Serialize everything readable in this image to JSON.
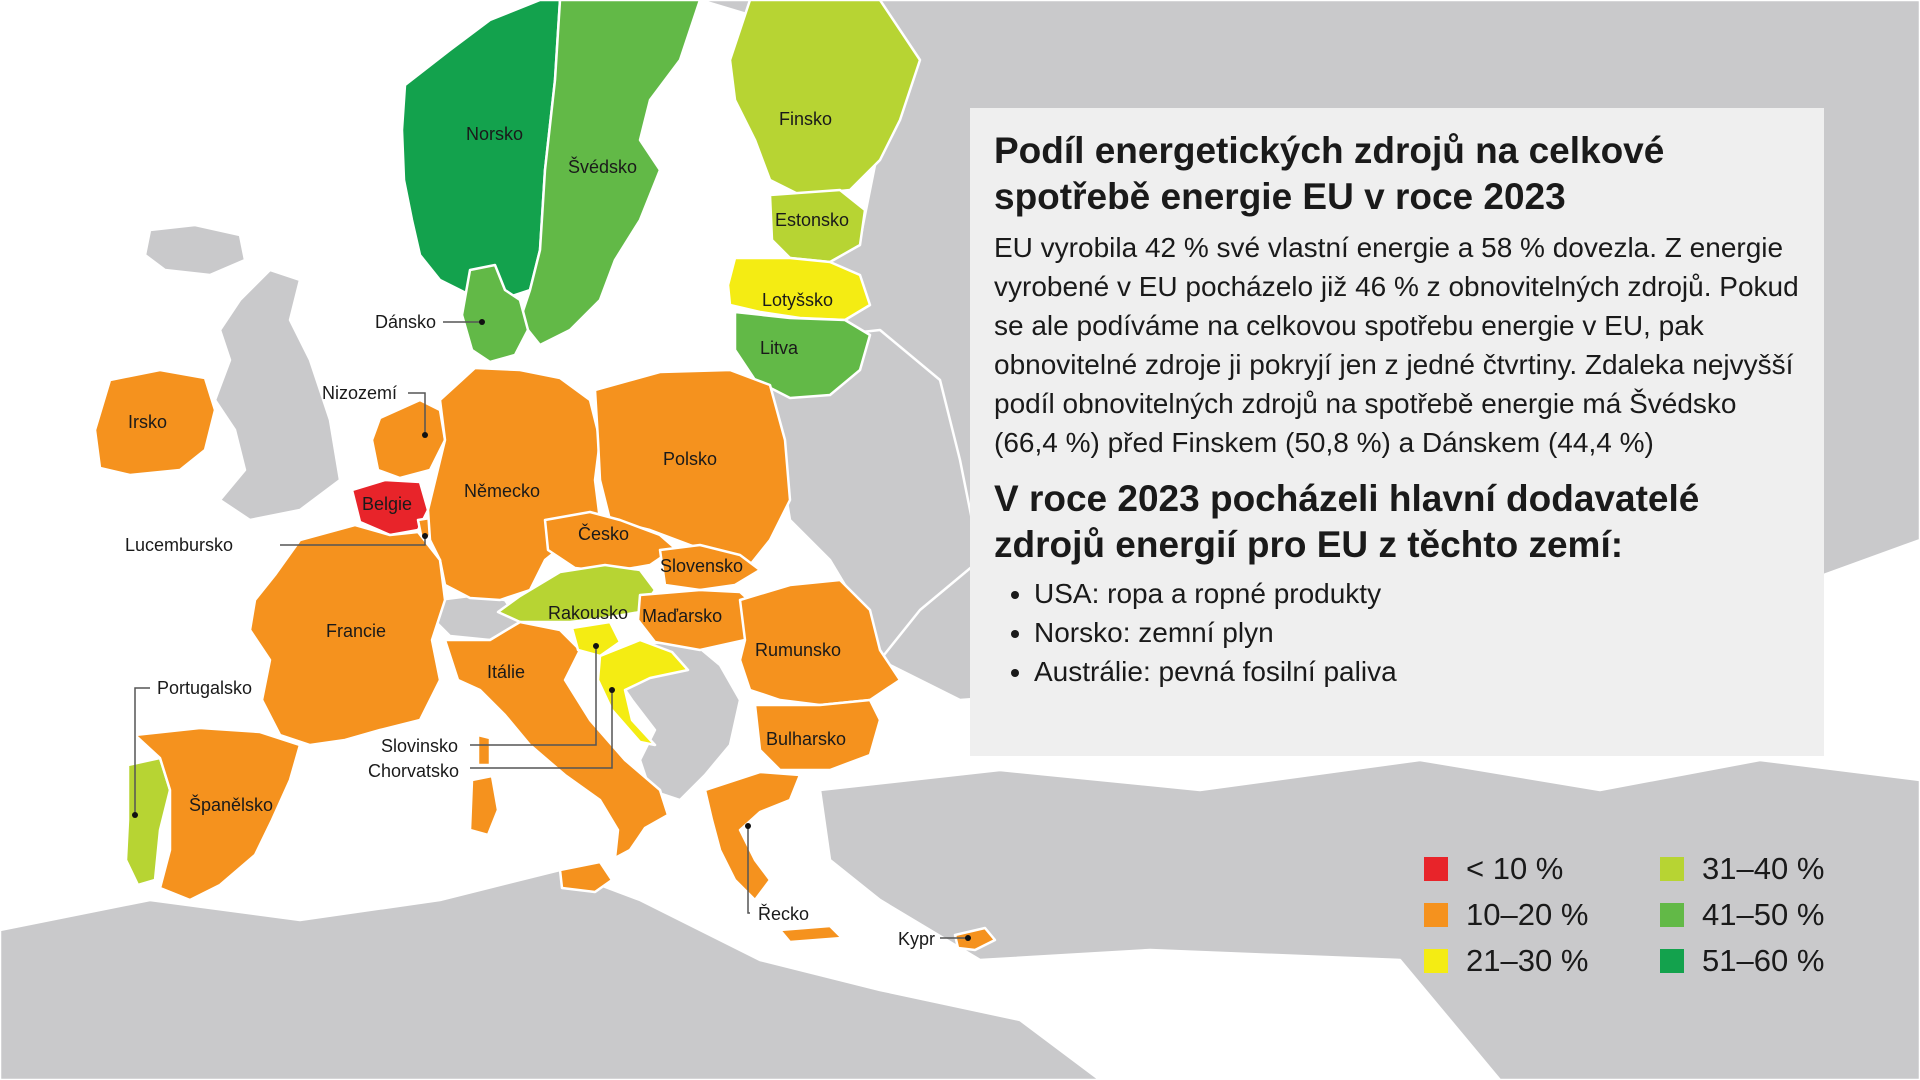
{
  "colors": {
    "lt10": "#e8242a",
    "p10_20": "#f5921e",
    "p21_30": "#f4ec13",
    "p31_40": "#b7d433",
    "p41_50": "#62b947",
    "p51_60": "#13a24d",
    "nonEU": "#c9c9cb",
    "sea": "#ffffff",
    "panel": "#efefef"
  },
  "panel": {
    "title": "Podíl energetických zdrojů na celkové spotřebě energie EU v roce 2023",
    "body": "EU vyrobila 42 % své vlastní energie a 58 % dovezla. Z energie vyrobené v EU pocházelo již 46 % z obnovitelných zdrojů. Pokud se ale podíváme na celkovou spotřebu energie v EU, pak obnovitelné zdroje ji pokryjí jen z jedné čtvrtiny. Zdaleka nejvyšší podíl obnovitelných zdrojů na spotřebě energie má Švédsko (66,4 %) před Finskem (50,8 %) a Dánskem (44,4 %)",
    "subtitle": "V roce 2023 pocházeli hlavní dodavatelé zdrojů energií pro EU z těchto zemí:",
    "suppliers": [
      "USA: ropa a ropné produkty",
      "Norsko: zemní plyn",
      "Austrálie: pevná fosilní paliva"
    ]
  },
  "legend": [
    {
      "label": "< 10 %",
      "color": "#e8242a"
    },
    {
      "label": "10–20 %",
      "color": "#f5921e"
    },
    {
      "label": "21–30 %",
      "color": "#f4ec13"
    },
    {
      "label": "31–40 %",
      "color": "#b7d433"
    },
    {
      "label": "41–50 %",
      "color": "#62b947"
    },
    {
      "label": "51–60 %",
      "color": "#13a24d"
    }
  ],
  "countries": {
    "norsko": "Norsko",
    "svedsko": "Švédsko",
    "finsko": "Finsko",
    "estonsko": "Estonsko",
    "lotyssko": "Lotyšsko",
    "litva": "Litva",
    "dansko": "Dánsko",
    "irsko": "Irsko",
    "nizozemi": "Nizozemí",
    "belgie": "Belgie",
    "lucembursko": "Lucembursko",
    "nemecko": "Německo",
    "polsko": "Polsko",
    "cesko": "Česko",
    "slovensko": "Slovensko",
    "rakousko": "Rakousko",
    "madarsko": "Maďarsko",
    "francie": "Francie",
    "italie": "Itálie",
    "slovinsko": "Slovinsko",
    "chorvatsko": "Chorvatsko",
    "rumunsko": "Rumunsko",
    "bulharsko": "Bulharsko",
    "portugalsko": "Portugalsko",
    "spanelsko": "Španělsko",
    "recko": "Řecko",
    "kypr": "Kypr"
  }
}
